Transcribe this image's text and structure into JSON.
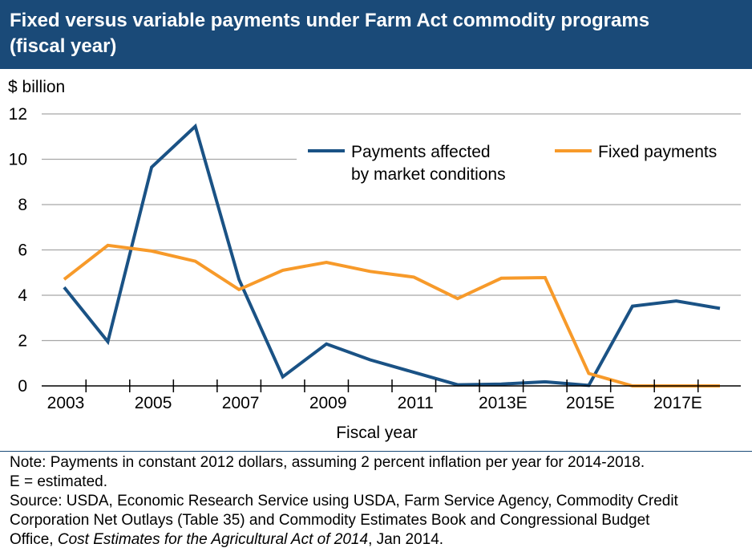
{
  "title": "Fixed versus variable payments under Farm Act commodity programs\n(fiscal year)",
  "chart_data": {
    "type": "line",
    "title": "Fixed versus variable payments under Farm Act commodity programs (fiscal year)",
    "ylabel": "$ billion",
    "xlabel": "Fiscal year",
    "ylim": [
      0,
      12
    ],
    "yticks": [
      0,
      2,
      4,
      6,
      8,
      10,
      12
    ],
    "x": [
      2003,
      2004,
      2005,
      2006,
      2007,
      2008,
      2009,
      2010,
      2011,
      2012,
      2013,
      2014,
      2015,
      2016,
      2017,
      2018
    ],
    "xtick_labels": [
      "2003",
      "2005",
      "2007",
      "2009",
      "2011",
      "2013E",
      "2015E",
      "2017E"
    ],
    "grid": "horizontal",
    "legend_position": "top-right",
    "series": [
      {
        "name": "Payments affected by market conditions",
        "legend_lines": [
          "Payments affected",
          "by market conditions"
        ],
        "color": "#1a5285",
        "values": [
          4.35,
          1.95,
          9.65,
          11.45,
          4.7,
          0.4,
          1.85,
          1.15,
          0.6,
          0.05,
          0.08,
          0.18,
          0.02,
          3.52,
          3.75,
          3.42
        ]
      },
      {
        "name": "Fixed payments",
        "legend_lines": [
          "Fixed payments"
        ],
        "color": "#f79a2a",
        "values": [
          4.7,
          6.2,
          5.95,
          5.5,
          4.25,
          5.1,
          5.45,
          5.05,
          4.8,
          3.85,
          4.75,
          4.78,
          0.55,
          0.0,
          0.0,
          0.0
        ]
      }
    ]
  },
  "notes": {
    "line1": "Note: Payments in constant 2012 dollars, assuming 2 percent inflation per year for 2014-2018.",
    "line2": "E = estimated.",
    "line3": "Source: USDA, Economic Research Service using USDA, Farm Service Agency, Commodity Credit",
    "line4": "Corporation Net Outlays (Table 35) and Commodity Estimates Book and Congressional Budget",
    "line5_prefix": "Office, ",
    "line5_italic": "Cost Estimates for the Agricultural Act of 2014",
    "line5_suffix": ", Jan 2014."
  }
}
